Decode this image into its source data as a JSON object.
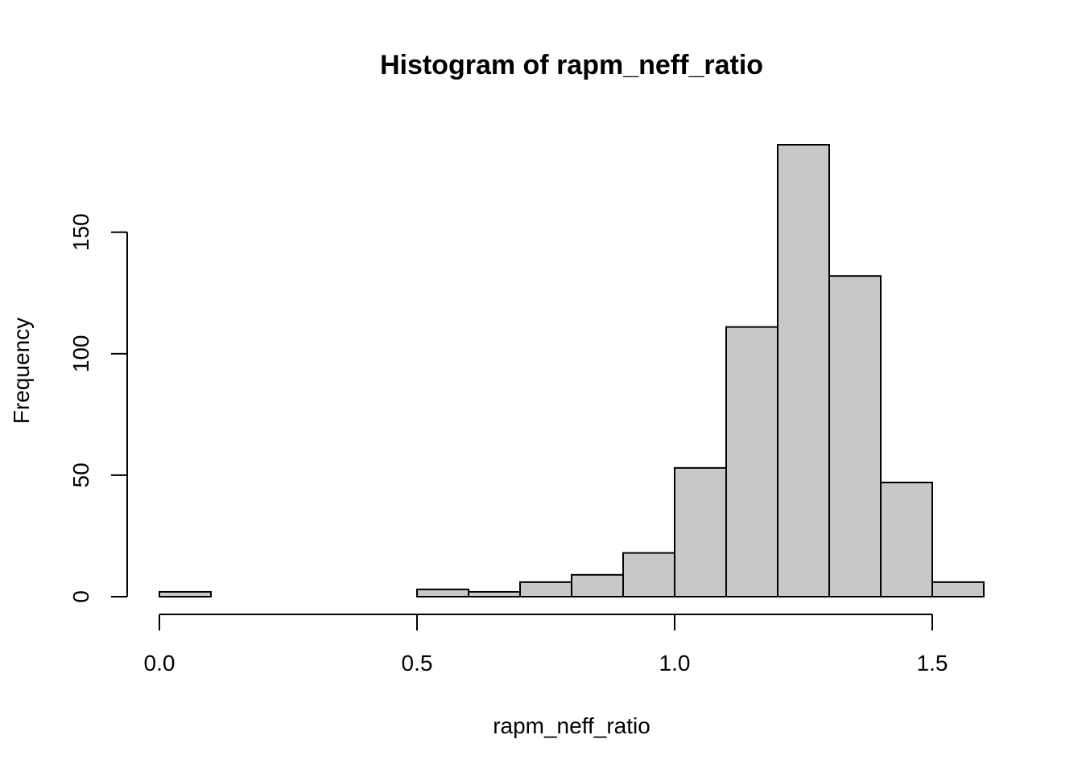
{
  "chart_data": {
    "type": "bar",
    "title": "Histogram of rapm_neff_ratio",
    "xlabel": "rapm_neff_ratio",
    "ylabel": "Frequency",
    "bin_edges": [
      0.0,
      0.1,
      0.2,
      0.3,
      0.4,
      0.5,
      0.6,
      0.7,
      0.8,
      0.9,
      1.0,
      1.1,
      1.2,
      1.3,
      1.4,
      1.5,
      1.6
    ],
    "values": [
      2,
      0,
      0,
      0,
      0,
      3,
      2,
      6,
      9,
      18,
      53,
      111,
      186,
      132,
      47,
      6
    ],
    "xlim": [
      0.0,
      1.6
    ],
    "ylim": [
      0,
      186
    ],
    "x_ticks": [
      0.0,
      0.5,
      1.0,
      1.5
    ],
    "x_tick_labels": [
      "0.0",
      "0.5",
      "1.0",
      "1.5"
    ],
    "y_ticks": [
      0,
      50,
      100,
      150
    ],
    "y_tick_labels": [
      "0",
      "50",
      "100",
      "150"
    ],
    "bar_fill": "#c8c8c8",
    "grid": false
  }
}
